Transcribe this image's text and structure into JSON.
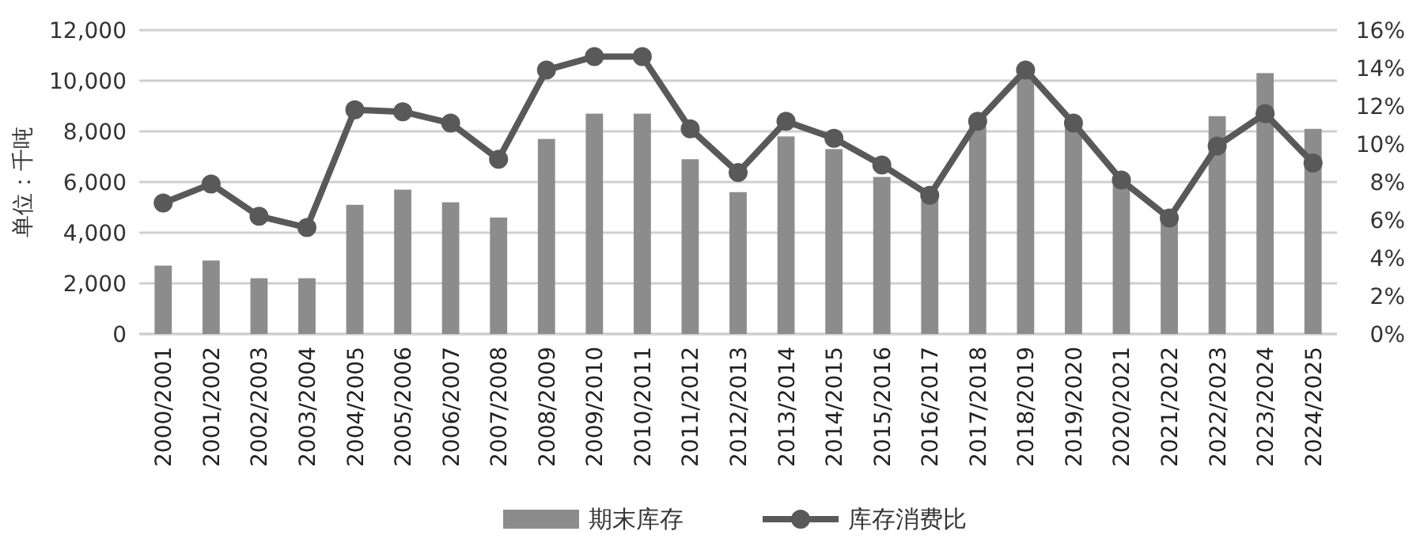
{
  "chart_data": {
    "type": "bar",
    "ylabel": "单位：千吨",
    "categories": [
      "2000/2001",
      "2001/2002",
      "2002/2003",
      "2003/2004",
      "2004/2005",
      "2005/2006",
      "2006/2007",
      "2007/2008",
      "2008/2009",
      "2009/2010",
      "2010/2011",
      "2011/2012",
      "2012/2013",
      "2013/2014",
      "2014/2015",
      "2015/2016",
      "2016/2017",
      "2017/2018",
      "2018/2019",
      "2019/2020",
      "2020/2021",
      "2021/2022",
      "2022/2023",
      "2023/2024",
      "2024/2025"
    ],
    "series": [
      {
        "name": "期末库存",
        "color": "#8c8c8c",
        "values": [
          2700,
          2900,
          2200,
          2200,
          5100,
          5700,
          5200,
          4600,
          7700,
          8700,
          8700,
          6900,
          5600,
          7800,
          7300,
          6200,
          5300,
          8200,
          10100,
          8200,
          5900,
          4600,
          8600,
          10300,
          8100
        ]
      },
      {
        "name": "库存消费比",
        "type": "line",
        "axis": "y2",
        "color": "#595959",
        "marker": "circle",
        "values": [
          6.9,
          7.9,
          6.2,
          5.6,
          11.8,
          11.7,
          11.1,
          9.2,
          13.9,
          14.6,
          14.6,
          10.8,
          8.5,
          11.2,
          10.3,
          8.9,
          7.3,
          11.2,
          13.9,
          11.1,
          8.1,
          6.1,
          9.9,
          11.6,
          9.0
        ]
      }
    ],
    "ylim": [
      0,
      12000
    ],
    "yticks": [
      {
        "value": 0,
        "label": "0"
      },
      {
        "value": 2000,
        "label": "2,000"
      },
      {
        "value": 4000,
        "label": "4,000"
      },
      {
        "value": 6000,
        "label": "6,000"
      },
      {
        "value": 8000,
        "label": "8,000"
      },
      {
        "value": 10000,
        "label": "10,000"
      },
      {
        "value": 12000,
        "label": "12,000"
      }
    ],
    "y2lim": [
      0,
      16
    ],
    "y2ticks": [
      {
        "value": 0,
        "label": "0%"
      },
      {
        "value": 2,
        "label": "2%"
      },
      {
        "value": 4,
        "label": "4%"
      },
      {
        "value": 6,
        "label": "6%"
      },
      {
        "value": 8,
        "label": "8%"
      },
      {
        "value": 10,
        "label": "10%"
      },
      {
        "value": 12,
        "label": "12%"
      },
      {
        "value": 14,
        "label": "14%"
      },
      {
        "value": 16,
        "label": "16%"
      }
    ],
    "grid": "y",
    "legend": "bottom"
  }
}
